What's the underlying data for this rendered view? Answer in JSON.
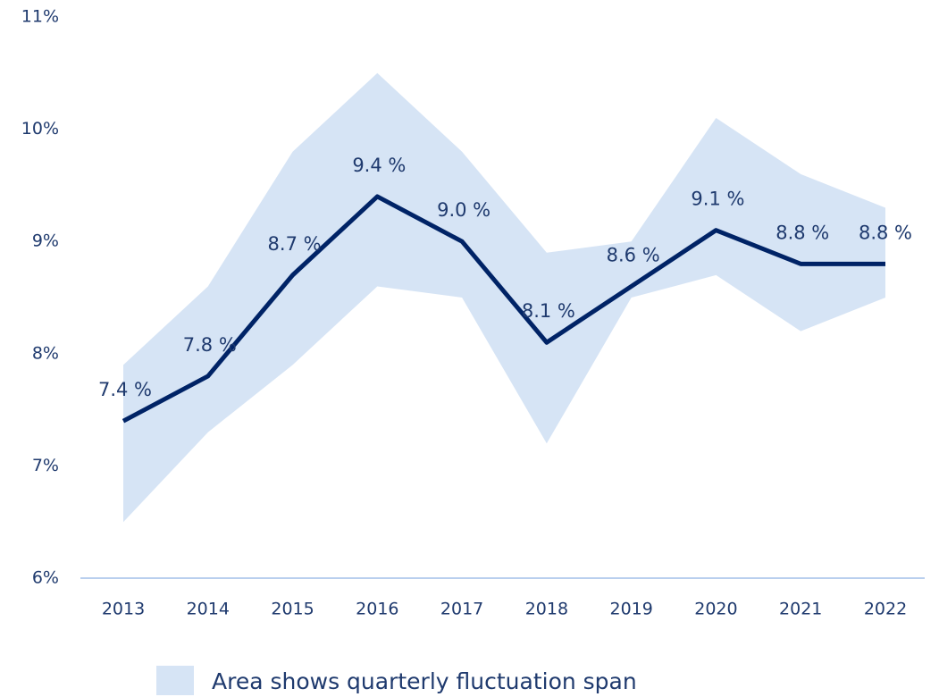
{
  "chart_data": {
    "type": "line",
    "categories": [
      "2013",
      "2014",
      "2015",
      "2016",
      "2017",
      "2018",
      "2019",
      "2020",
      "2021",
      "2022"
    ],
    "values": [
      7.4,
      7.8,
      8.7,
      9.4,
      9.0,
      8.1,
      8.6,
      9.1,
      8.8,
      8.8
    ],
    "value_labels": [
      "7.4 %",
      "7.8 %",
      "8.7 %",
      "9.4 %",
      "9.0 %",
      "8.1 %",
      "8.6 %",
      "9.1 %",
      "8.8 %",
      "8.8 %"
    ],
    "color": "#002366",
    "band": {
      "name": "Area shows quarterly fluctuation span",
      "color": "#d6e4f5",
      "upper": [
        7.9,
        8.6,
        9.8,
        10.5,
        9.8,
        8.9,
        9.0,
        10.1,
        9.6,
        9.3
      ],
      "lower": [
        6.5,
        7.3,
        7.9,
        8.6,
        8.5,
        7.2,
        8.5,
        8.7,
        8.2,
        8.5
      ]
    },
    "ylim": [
      6,
      11
    ],
    "yticks": [
      {
        "value": 6,
        "label": "6%"
      },
      {
        "value": 7,
        "label": "7%"
      },
      {
        "value": 8,
        "label": "8%"
      },
      {
        "value": 9,
        "label": "9%"
      },
      {
        "value": 10,
        "label": "10%"
      },
      {
        "value": 11,
        "label": "11%"
      }
    ]
  }
}
